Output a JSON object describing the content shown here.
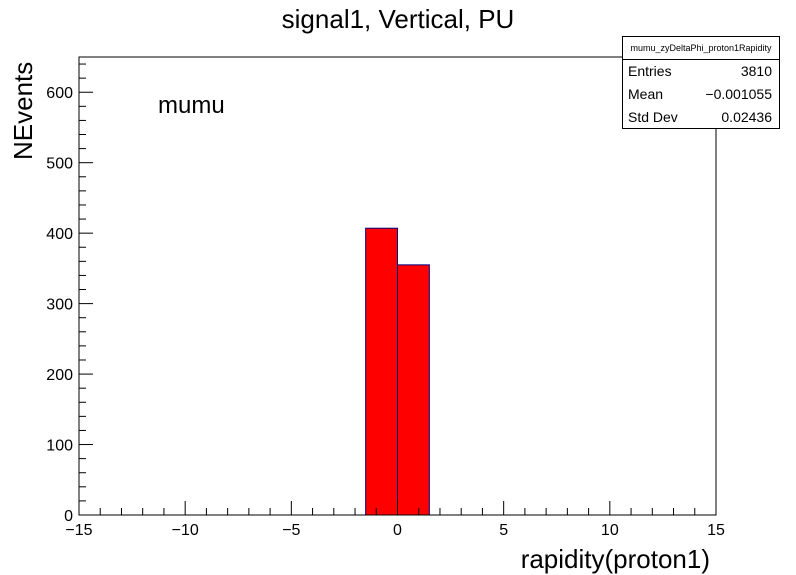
{
  "chart_data": {
    "type": "bar",
    "title": "signal1, Vertical, PU",
    "xlabel": "rapidity(proton1)",
    "ylabel": "NEvents",
    "annotation": "mumu",
    "xlim": [
      -15,
      15
    ],
    "ylim": [
      0,
      650
    ],
    "xticks": [
      -15,
      -10,
      -5,
      0,
      5,
      10,
      15
    ],
    "xtick_labels": [
      "−15",
      "−10",
      "−5",
      "0",
      "5",
      "10",
      "15"
    ],
    "yticks": [
      0,
      100,
      200,
      300,
      400,
      500,
      600
    ],
    "ytick_labels": [
      "0",
      "100",
      "200",
      "300",
      "400",
      "500",
      "600"
    ],
    "bins": [
      {
        "x0": -1.5,
        "x1": 0,
        "value": 407
      },
      {
        "x0": 0,
        "x1": 1.5,
        "value": 355
      }
    ],
    "fill_color": "#ff0000",
    "edge_color": "#000080",
    "stats_box": {
      "name": "mumu_zyDeltaPhi_proton1Rapidity",
      "rows": [
        {
          "label": "Entries",
          "value": "3810"
        },
        {
          "label": "Mean",
          "value": "−0.001055"
        },
        {
          "label": "Std Dev",
          "value": "0.02436"
        }
      ]
    }
  }
}
